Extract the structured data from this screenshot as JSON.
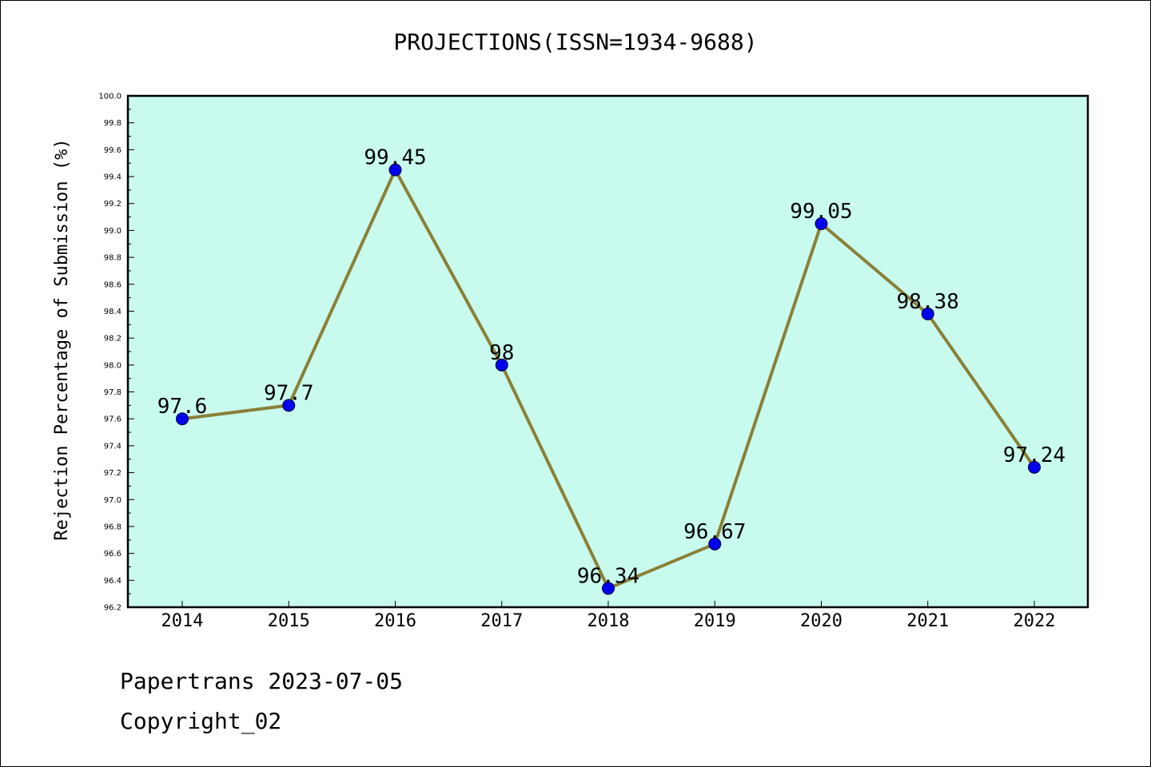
{
  "title": "PROJECTIONS(ISSN=1934-9688)",
  "footer": {
    "line1": "Papertrans 2023-07-05",
    "line2": "Copyright_02"
  },
  "colors": {
    "plot_background": "#c8fbee",
    "line": "#8b8038",
    "marker": "#0000ee"
  },
  "chart_data": {
    "type": "line",
    "categories": [
      "2014",
      "2015",
      "2016",
      "2017",
      "2018",
      "2019",
      "2020",
      "2021",
      "2022"
    ],
    "values": [
      97.6,
      97.7,
      99.45,
      98,
      96.34,
      96.67,
      99.05,
      98.38,
      97.24
    ],
    "value_labels": [
      "97.6",
      "97.7",
      "99.45",
      "98",
      "96.34",
      "96.67",
      "99.05",
      "98.38",
      "97.24"
    ],
    "title": "PROJECTIONS(ISSN=1934-9688)",
    "xlabel": "",
    "ylabel": "Rejection Percentage of Submission (%)",
    "ylim": [
      96.2,
      100.0
    ],
    "yticks": [
      "96.2",
      "96.4",
      "96.6",
      "96.8",
      "97.0",
      "97.2",
      "97.4",
      "97.6",
      "97.8",
      "98.0",
      "98.2",
      "98.4",
      "98.6",
      "98.8",
      "99.0",
      "99.2",
      "99.4",
      "99.6",
      "99.8",
      "100.0"
    ],
    "grid": false,
    "legend": "none"
  }
}
